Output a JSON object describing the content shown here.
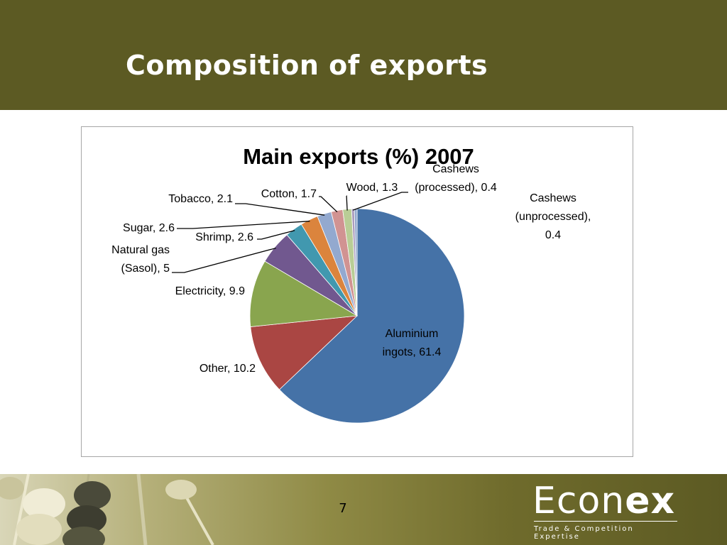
{
  "slide": {
    "title": "Composition of exports",
    "page_number": "7"
  },
  "logo": {
    "word_light": "Econ",
    "word_bold": "ex",
    "tagline": "Trade & Competition Expertise"
  },
  "colors": {
    "header_bg": "#5c5a23",
    "title_text": "#ffffff"
  },
  "chart_data": {
    "type": "pie",
    "title": "Main exports (%) 2007",
    "categories": [
      "Aluminium ingots",
      "Other",
      "Electricity",
      "Natural gas (Sasol)",
      "Shrimp",
      "Sugar",
      "Tobacco",
      "Cotton",
      "Wood",
      "Cashews (processed)",
      "Cashews (unprocessed)"
    ],
    "values": [
      61.4,
      10.2,
      9.9,
      5,
      2.6,
      2.6,
      2.1,
      1.7,
      1.3,
      0.4,
      0.4
    ],
    "labels": [
      [
        "Aluminium",
        "ingots, 61.4"
      ],
      [
        "Other, 10.2"
      ],
      [
        "Electricity, 9.9"
      ],
      [
        "Natural gas",
        "(Sasol), 5"
      ],
      [
        "Shrimp, 2.6"
      ],
      [
        "Sugar, 2.6"
      ],
      [
        "Tobacco, 2.1"
      ],
      [
        "Cotton, 1.7"
      ],
      [
        "Wood, 1.3"
      ],
      [
        "Cashews",
        "(processed), 0.4"
      ],
      [
        "Cashews",
        "(unprocessed),",
        "0.4"
      ]
    ],
    "colors": [
      "#4572a7",
      "#aa4643",
      "#89a54e",
      "#71588f",
      "#4198af",
      "#db843d",
      "#93a9cf",
      "#d19392",
      "#b9cd96",
      "#a99bbd",
      "#92a8cd"
    ],
    "start_angle_deg": 0,
    "direction": "clockwise",
    "legend": "none"
  }
}
